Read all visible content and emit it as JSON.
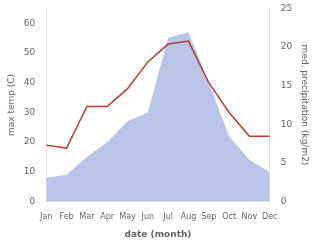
{
  "chart_data": {
    "type": "line",
    "xlabel": "date (month)",
    "ylabel": "max temp (C)",
    "y2label": "med. precipitation (kg/m2)",
    "categories": [
      "Jan",
      "Feb",
      "Mar",
      "Apr",
      "May",
      "Jun",
      "Jul",
      "Aug",
      "Sep",
      "Oct",
      "Nov",
      "Dec"
    ],
    "series": [
      {
        "type": "area",
        "color": "#b8c4e8",
        "values": [
          8,
          9,
          15,
          20,
          27,
          30,
          55,
          57,
          40,
          22,
          14,
          10
        ]
      },
      {
        "type": "line",
        "color": "#c0392b",
        "values": [
          19,
          18,
          32,
          32,
          38,
          47,
          53,
          54,
          40,
          30,
          22,
          22
        ]
      }
    ],
    "ylim": [
      0,
      65
    ],
    "yticks": [
      0,
      10,
      20,
      30,
      40,
      50,
      60
    ],
    "y2lim": [
      0,
      25
    ],
    "y2ticks": [
      0,
      5,
      10,
      15,
      20,
      25
    ],
    "grid": false
  }
}
